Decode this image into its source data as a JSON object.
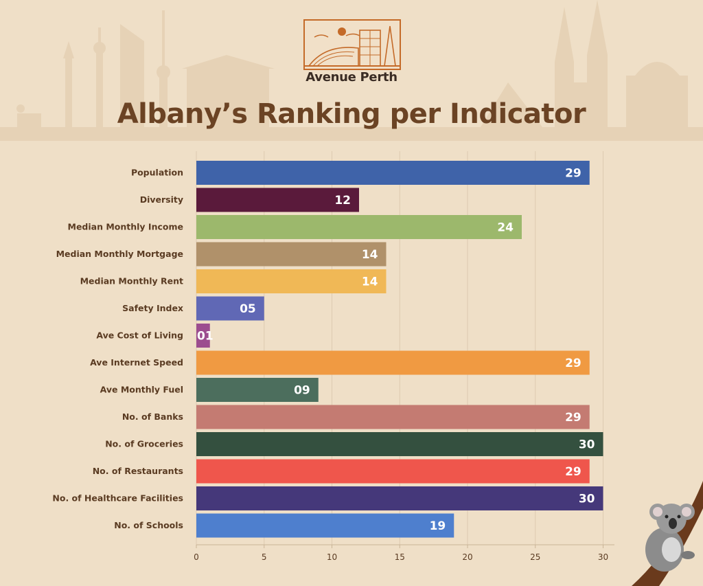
{
  "brand": {
    "name": "Avenue Perth"
  },
  "chart_data": {
    "type": "bar",
    "orientation": "horizontal",
    "title": "Albany’s Ranking per Indicator",
    "categories": [
      "Population",
      "Diversity",
      "Median Monthly Income",
      "Median Monthly Mortgage",
      "Median Monthly Rent",
      "Safety Index",
      "Ave Cost of Living",
      "Ave Internet Speed",
      "Ave Monthly Fuel",
      "No. of Banks",
      "No. of Groceries",
      "No. of Restaurants",
      "No. of Healthcare Facilities",
      "No. of Schools"
    ],
    "values": [
      29,
      12,
      24,
      14,
      14,
      5,
      1,
      29,
      9,
      29,
      30,
      29,
      30,
      19
    ],
    "value_labels": [
      "29",
      "12",
      "24",
      "14",
      "14",
      "05",
      "01",
      "29",
      "09",
      "29",
      "30",
      "29",
      "30",
      "19"
    ],
    "colors": [
      "#3f63a9",
      "#5a1a3b",
      "#9cb86c",
      "#b0916a",
      "#f0b856",
      "#6068b5",
      "#9c4d8f",
      "#f09a42",
      "#4c6e5d",
      "#c47b72",
      "#34503f",
      "#ef564c",
      "#45387a",
      "#4e7fce"
    ],
    "xlim": [
      0,
      31
    ],
    "xticks": [
      0,
      5,
      10,
      15,
      20,
      25,
      30
    ],
    "grid": "vertical",
    "legend": "none"
  }
}
